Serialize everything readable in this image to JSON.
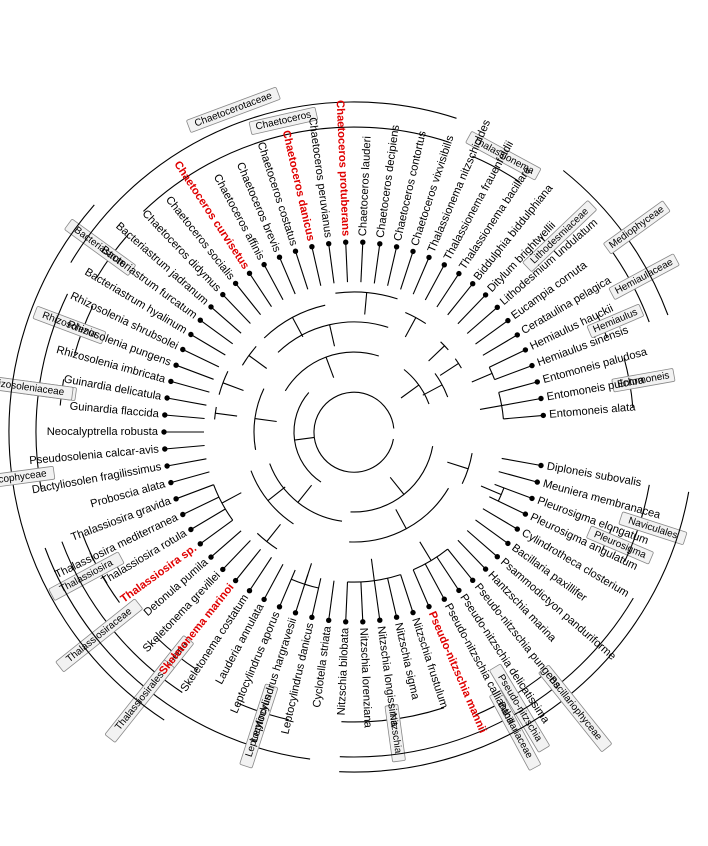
{
  "tree": {
    "leaves": [
      {
        "name": "Entomoneis alata"
      },
      {
        "name": "Entomoneis pulchra"
      },
      {
        "name": "Entomoneis paludosa"
      },
      {
        "name": "Hemiaulus sinensis"
      },
      {
        "name": "Hemiaulus hauckii"
      },
      {
        "name": "Cerataulina pelagica"
      },
      {
        "name": "Eucampia cornuta"
      },
      {
        "name": "Lithodesmium undulatum"
      },
      {
        "name": "Ditylum brightwellii"
      },
      {
        "name": "Biddulphia biddulphiana"
      },
      {
        "name": "Thalassionema bacillare"
      },
      {
        "name": "Thalassionema frauenfeldii"
      },
      {
        "name": "Thalassionema nitzschioides"
      },
      {
        "name": "Chaetoceros vixvisibilis"
      },
      {
        "name": "Chaetoceros contortus"
      },
      {
        "name": "Chaetoceros decipiens"
      },
      {
        "name": "Chaetoceros lauderi"
      },
      {
        "name": "Chaetoceros protuberans",
        "highlight": true
      },
      {
        "name": "Chaetoceros peruvianus"
      },
      {
        "name": "Chaetoceros danicus",
        "highlight": true
      },
      {
        "name": "Chaetoceros costatus"
      },
      {
        "name": "Chaetoceros brevis"
      },
      {
        "name": "Chaetoceros affinis"
      },
      {
        "name": "Chaetoceros curvisetus",
        "highlight": true
      },
      {
        "name": "Chaetoceros socialis"
      },
      {
        "name": "Chaetoceros didymus"
      },
      {
        "name": "Bacteriastrum jadranum"
      },
      {
        "name": "Bacteriastrum furcatum"
      },
      {
        "name": "Bacteriastrum hyalinum"
      },
      {
        "name": "Rhizosolenia shrubsolei"
      },
      {
        "name": "Rhizosolenia pungens"
      },
      {
        "name": "Rhizosolenia imbricata"
      },
      {
        "name": "Guinardia delicatula"
      },
      {
        "name": "Guinardia flaccida"
      },
      {
        "name": "Neocalyptrella robusta"
      },
      {
        "name": "Pseudosolenia calcar-avis"
      },
      {
        "name": "Dactyliosolen fragilissimus"
      },
      {
        "name": "Proboscia alata"
      },
      {
        "name": "Thalassiosira gravida"
      },
      {
        "name": "Thalassiosira mediterranea"
      },
      {
        "name": "Thalassiosira rotula"
      },
      {
        "name": "Thalassiosira sp.",
        "highlight": true
      },
      {
        "name": "Detonula pumila"
      },
      {
        "name": "Skeletonema grevillei"
      },
      {
        "name": "Skeletonema marinoi",
        "highlight": true
      },
      {
        "name": "Skeletonema costatum"
      },
      {
        "name": "Lauderia annulata"
      },
      {
        "name": "Leptocylindrus aporus"
      },
      {
        "name": "Leptocylindrus hargravesii"
      },
      {
        "name": "Leptocylindrus danicus"
      },
      {
        "name": "Cyclotella striata"
      },
      {
        "name": "Nitzschia bilobata"
      },
      {
        "name": "Nitzschia lorenziana"
      },
      {
        "name": "Nitzschia longissima"
      },
      {
        "name": "Nitzschia sigma"
      },
      {
        "name": "Nitzschia frustulum"
      },
      {
        "name": "Pseudo-nitzschia mannii",
        "highlight": true
      },
      {
        "name": "Pseudo-nitzschia calliantha"
      },
      {
        "name": "Pseudo-nitzschia delicatissima"
      },
      {
        "name": "Pseudo-nitzschia pungens"
      },
      {
        "name": "Hantzschia marina"
      },
      {
        "name": "Psammodictyon panduriforme"
      },
      {
        "name": "Bacillaria paxillifer"
      },
      {
        "name": "Cylindrotheca closterium"
      },
      {
        "name": "Pleurosigma angulatum"
      },
      {
        "name": "Pleurosigma elongatum"
      },
      {
        "name": "Meuniera membranacea"
      },
      {
        "name": "Diploneis subovalis"
      }
    ],
    "clades": [
      {
        "name": "Entomoneis",
        "from": 0,
        "to": 2,
        "radius": 280
      },
      {
        "name": "Hemiaulus",
        "from": 3,
        "to": 4,
        "radius": 270
      },
      {
        "name": "Hemiaulaceae",
        "from": 3,
        "to": 6,
        "radius": 315
      },
      {
        "name": "Lithodesmiaceae",
        "from": 7,
        "to": 8,
        "radius": 270
      },
      {
        "name": "Mediophyceae",
        "from": 3,
        "to": 9,
        "radius": 335
      },
      {
        "name": "Thalassionema",
        "from": 10,
        "to": 12,
        "radius": 300
      },
      {
        "name": "Chaetoceros",
        "from": 13,
        "to": 25,
        "radius": 305
      },
      {
        "name": "Bacteriastrum",
        "from": 26,
        "to": 28,
        "radius": 300
      },
      {
        "name": "Chaetocerotaceae",
        "from": 13,
        "to": 28,
        "radius": 330
      },
      {
        "name": "Rhizosolenia",
        "from": 29,
        "to": 31,
        "radius": 290
      },
      {
        "name": "Guinardia",
        "from": 32,
        "to": 33,
        "radius": 295
      },
      {
        "name": "Rhizosoleniaceae",
        "from": 29,
        "to": 36,
        "radius": 318
      },
      {
        "name": "Thalassiosira",
        "from": 38,
        "to": 41,
        "radius": 290
      },
      {
        "name": "Skeletonema",
        "from": 43,
        "to": 45,
        "radius": 285
      },
      {
        "name": "Thalassiosiraceae",
        "from": 38,
        "to": 45,
        "radius": 312
      },
      {
        "name": "Thalassiosirales",
        "from": 38,
        "to": 50,
        "radius": 330
      },
      {
        "name": "Leptocylindrus",
        "from": 47,
        "to": 49,
        "radius": 295
      },
      {
        "name": "Coscinodiscophyceae",
        "from": 26,
        "to": 45,
        "radius": 345
      },
      {
        "name": "Nitzschia",
        "from": 51,
        "to": 55,
        "radius": 290
      },
      {
        "name": "Pseudo-nitzschia",
        "from": 56,
        "to": 59,
        "radius": 308
      },
      {
        "name": "Bacillariaceae",
        "from": 51,
        "to": 63,
        "radius": 325
      },
      {
        "name": "Pleurosigma",
        "from": 64,
        "to": 65,
        "radius": 275
      },
      {
        "name": "Naviculales",
        "from": 64,
        "to": 67,
        "radius": 300
      },
      {
        "name": "Bacillariophyceae",
        "from": 51,
        "to": 67,
        "radius": 340
      }
    ]
  }
}
